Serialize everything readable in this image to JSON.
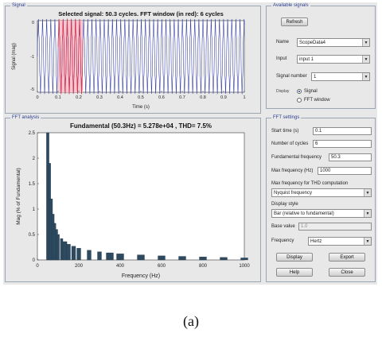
{
  "signal_panel": {
    "title": "Signal",
    "plot_title": "Selected signal: 50.3 cycles. FFT window (in red): 6 cycles",
    "ylabel": "Signal (mag)",
    "xlabel": "Time (s)",
    "y_ticks": [
      "0",
      "-1",
      "-5"
    ],
    "x_ticks": [
      "0",
      "0.1",
      "0.2",
      "0.3",
      "0.4",
      "0.5",
      "0.6",
      "0.7",
      "0.8",
      "0.9",
      "1"
    ]
  },
  "fft_panel": {
    "title": "FFT analysis",
    "plot_title": "Fundamental (50.3Hz) = 5.278e+04 , THD= 7.5%",
    "ylabel": "Mag (% of Fundamental)",
    "xlabel": "Frequency (Hz)",
    "y_ticks": [
      "0",
      "0.5",
      "1",
      "1.5",
      "2",
      "2.5"
    ],
    "x_ticks": [
      "0",
      "200",
      "400",
      "600",
      "800",
      "1000"
    ]
  },
  "available_signals": {
    "title": "Available signals",
    "refresh_label": "Refresh",
    "name_label": "Name",
    "name_value": "ScopeData4",
    "input_label": "Input",
    "input_value": "input 1",
    "signal_number_label": "Signal number",
    "signal_number_value": "1",
    "display_label": "Display",
    "signal_option": "Signal",
    "fft_window_option": "FFT window"
  },
  "fft_settings": {
    "title": "FFT settings",
    "start_time_label": "Start time (s)",
    "start_time_value": "0.1",
    "num_cycles_label": "Number of cycles",
    "num_cycles_value": "6",
    "fundamental_label": "Fundamental frequency",
    "fundamental_value": "50.3",
    "max_freq_label": "Max frequency (Hz)",
    "max_freq_value": "1000",
    "thd_label": "Max frequency for THD computation",
    "thd_value": "Nyquist frequency",
    "display_style_label": "Display style",
    "display_style_value": "Bar (relative to fundamental)",
    "base_value_label": "Base value",
    "base_value_value": "1.0",
    "frequency_axis_label": "Frequency",
    "frequency_axis_value": "Hertz",
    "display_button": "Display",
    "export_button": "Export",
    "help_button": "Help",
    "close_button": "Close"
  },
  "caption": "(a)",
  "colors": {
    "signal_wave": "#3a44a8",
    "fft_window": "#e0304a",
    "bar_fill": "#2e4a60",
    "panel_title": "#2a3f8f"
  },
  "chart_data": [
    {
      "type": "line",
      "title": "Selected signal: 50.3 cycles. FFT window (in red): 6 cycles",
      "xlabel": "Time (s)",
      "ylabel": "Signal (mag)",
      "xlim": [
        0,
        1
      ],
      "cycles": 50.3,
      "fft_window": [
        0.1,
        0.22
      ]
    },
    {
      "type": "bar",
      "title": "Fundamental (50.3Hz) = 5.278e+04 , THD= 7.5%",
      "xlabel": "Frequency (Hz)",
      "ylabel": "Mag (% of Fundamental)",
      "xlim": [
        0,
        1000
      ],
      "ylim": [
        0,
        2.5
      ],
      "x": [
        50,
        58,
        67,
        75,
        83,
        92,
        100,
        117,
        133,
        150,
        175,
        200,
        250,
        300,
        350,
        400,
        500,
        600,
        700,
        800,
        900,
        1000
      ],
      "values": [
        2.5,
        1.9,
        1.2,
        0.9,
        0.72,
        0.6,
        0.5,
        0.42,
        0.36,
        0.31,
        0.27,
        0.23,
        0.19,
        0.16,
        0.14,
        0.12,
        0.1,
        0.08,
        0.07,
        0.06,
        0.05,
        0.04
      ]
    }
  ]
}
